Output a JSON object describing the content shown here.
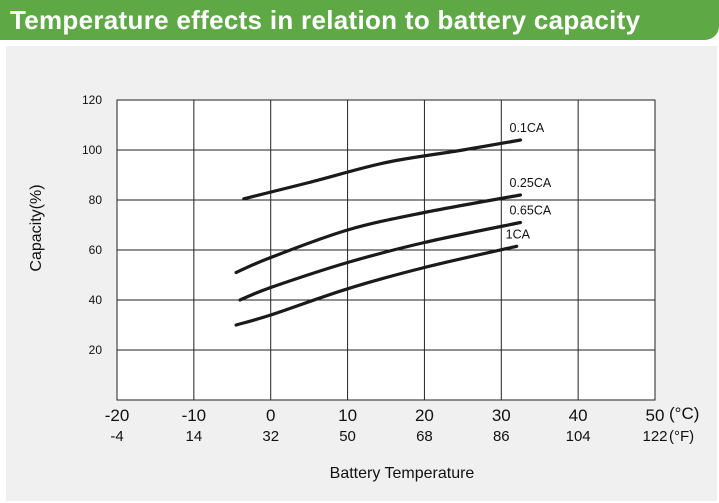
{
  "header": {
    "title": "Temperature effects in relation to battery capacity"
  },
  "colors": {
    "banner": "#5fa846",
    "panel": "#f0f0f0",
    "line": "#1a1a1a",
    "grid": "#222222"
  },
  "chart_data": {
    "type": "line",
    "title": "Temperature effects in relation to battery capacity",
    "xlabel": "Battery Temperature",
    "ylabel": "Capacity(%)",
    "x_unit": "(°C)",
    "x2_unit": "(°F)",
    "xlim": [
      -20,
      50
    ],
    "ylim": [
      0,
      120
    ],
    "x_ticks": [
      -20,
      -10,
      0,
      10,
      20,
      30,
      40,
      50
    ],
    "x2_ticks": [
      -4,
      14,
      32,
      50,
      68,
      86,
      104,
      122
    ],
    "y_ticks": [
      20,
      40,
      60,
      80,
      100,
      120
    ],
    "grid": true,
    "series": [
      {
        "name": "0.1CA",
        "points": [
          [
            -3.5,
            80.5
          ],
          [
            5,
            87
          ],
          [
            15,
            95
          ],
          [
            25,
            100
          ],
          [
            32.5,
            104
          ]
        ]
      },
      {
        "name": "0.25CA",
        "points": [
          [
            -4.5,
            51
          ],
          [
            0,
            57
          ],
          [
            10,
            68
          ],
          [
            20,
            75
          ],
          [
            32.5,
            82
          ]
        ]
      },
      {
        "name": "0.65CA",
        "points": [
          [
            -4,
            40
          ],
          [
            0,
            45
          ],
          [
            10,
            55
          ],
          [
            20,
            63
          ],
          [
            32.5,
            71
          ]
        ]
      },
      {
        "name": "1CA",
        "points": [
          [
            -4.5,
            30
          ],
          [
            0,
            34
          ],
          [
            10,
            44.5
          ],
          [
            20,
            53
          ],
          [
            32,
            61.5
          ]
        ]
      }
    ]
  }
}
